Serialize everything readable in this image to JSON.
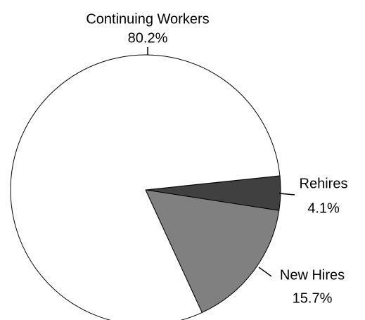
{
  "chart_data": {
    "type": "pie",
    "categories": [
      "Rehires",
      "New Hires",
      "Continuing Workers"
    ],
    "values": [
      4.1,
      15.7,
      80.2
    ],
    "value_labels": [
      "4.1%",
      "15.7%",
      "80.2%"
    ],
    "colors": [
      "#404040",
      "#808080",
      "#ffffff"
    ]
  }
}
